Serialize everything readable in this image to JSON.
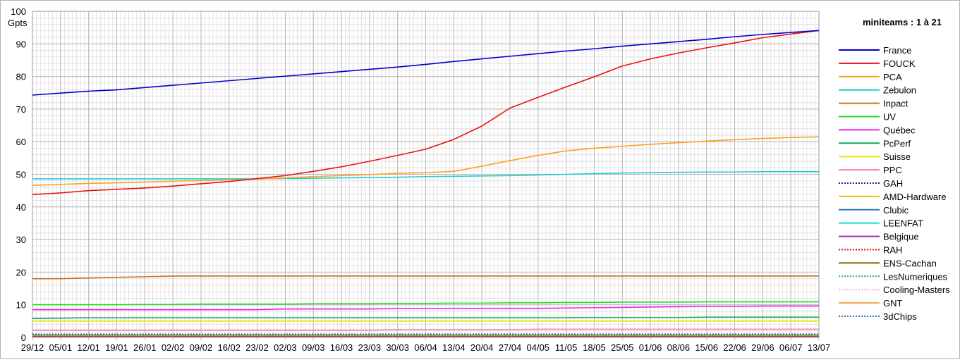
{
  "chart_data": {
    "type": "line",
    "title": "miniteams : 1 à 21",
    "xlabel": "",
    "ylabel": "Gpts",
    "ylim": [
      0,
      100
    ],
    "yticks": [
      0,
      10,
      20,
      30,
      40,
      50,
      60,
      70,
      80,
      90,
      100
    ],
    "x_tick_labels": [
      "29/12",
      "05/01",
      "12/01",
      "19/01",
      "26/01",
      "02/02",
      "09/02",
      "16/02",
      "23/02",
      "02/03",
      "09/03",
      "16/03",
      "23/03",
      "30/03",
      "06/04",
      "13/04",
      "20/04",
      "27/04",
      "04/05",
      "11/05",
      "18/05",
      "25/05",
      "01/06",
      "08/06",
      "15/06",
      "22/06",
      "29/06",
      "06/07",
      "13/07"
    ],
    "grid": true,
    "legend_position": "right",
    "series": [
      {
        "name": "France",
        "color": "#0000cc",
        "style": "solid",
        "values": [
          74.3,
          74.9,
          75.5,
          75.9,
          76.6,
          77.3,
          78.0,
          78.7,
          79.4,
          80.1,
          80.8,
          81.5,
          82.2,
          82.9,
          83.7,
          84.6,
          85.4,
          86.2,
          87.0,
          87.8,
          88.5,
          89.3,
          90.0,
          90.7,
          91.4,
          92.2,
          92.9,
          93.5,
          94.1
        ]
      },
      {
        "name": "FOUCK",
        "color": "#ee1111",
        "style": "solid",
        "values": [
          43.8,
          44.3,
          45.0,
          45.4,
          45.8,
          46.4,
          47.1,
          47.8,
          48.7,
          49.6,
          50.9,
          52.3,
          54.0,
          55.8,
          57.7,
          60.7,
          64.8,
          70.3,
          73.6,
          76.8,
          79.9,
          83.2,
          85.4,
          87.2,
          88.8,
          90.3,
          91.9,
          93.0,
          94.1
        ]
      },
      {
        "name": "PCA",
        "color": "#ffa020",
        "style": "solid",
        "values": [
          46.6,
          46.9,
          47.2,
          47.4,
          47.6,
          47.9,
          48.1,
          48.3,
          48.5,
          48.9,
          49.3,
          49.6,
          49.9,
          50.3,
          50.5,
          50.9,
          52.5,
          54.2,
          55.8,
          57.2,
          58.0,
          58.6,
          59.2,
          59.7,
          60.2,
          60.6,
          61.0,
          61.3,
          61.5
        ]
      },
      {
        "name": "Zebulon",
        "color": "#22cccc",
        "style": "solid",
        "values": [
          48.6,
          48.6,
          48.6,
          48.6,
          48.6,
          48.6,
          48.6,
          48.6,
          48.6,
          48.7,
          48.8,
          48.9,
          49.0,
          49.1,
          49.3,
          49.4,
          49.5,
          49.6,
          49.8,
          50.0,
          50.2,
          50.4,
          50.5,
          50.6,
          50.7,
          50.7,
          50.8,
          50.8,
          50.8
        ]
      },
      {
        "name": "Inpact",
        "color": "#c87028",
        "style": "solid",
        "values": [
          18.0,
          18.0,
          18.2,
          18.4,
          18.6,
          18.8,
          18.8,
          18.8,
          18.8,
          18.8,
          18.8,
          18.8,
          18.8,
          18.8,
          18.8,
          18.8,
          18.8,
          18.8,
          18.8,
          18.8,
          18.8,
          18.8,
          18.8,
          18.8,
          18.8,
          18.8,
          18.8,
          18.8,
          18.8
        ]
      },
      {
        "name": "UV",
        "color": "#22dd22",
        "style": "solid",
        "values": [
          10.0,
          10.0,
          10.0,
          10.0,
          10.1,
          10.1,
          10.2,
          10.2,
          10.2,
          10.2,
          10.3,
          10.3,
          10.3,
          10.4,
          10.4,
          10.5,
          10.5,
          10.6,
          10.6,
          10.7,
          10.7,
          10.8,
          10.8,
          10.8,
          10.9,
          10.9,
          10.9,
          10.9,
          10.9
        ]
      },
      {
        "name": "Québec",
        "color": "#ee22ee",
        "style": "solid",
        "values": [
          8.5,
          8.5,
          8.5,
          8.5,
          8.5,
          8.5,
          8.5,
          8.5,
          8.5,
          8.7,
          8.7,
          8.7,
          8.7,
          8.8,
          8.8,
          8.8,
          8.8,
          8.9,
          8.9,
          9.0,
          9.1,
          9.2,
          9.3,
          9.4,
          9.5,
          9.5,
          9.6,
          9.6,
          9.6
        ]
      },
      {
        "name": "PcPerf",
        "color": "#11aa55",
        "style": "solid",
        "values": [
          5.8,
          5.9,
          6.0,
          6.0,
          6.0,
          6.0,
          6.0,
          6.0,
          6.0,
          6.0,
          6.0,
          6.0,
          6.0,
          6.0,
          6.0,
          6.0,
          6.0,
          6.0,
          6.0,
          6.0,
          6.1,
          6.1,
          6.1,
          6.1,
          6.2,
          6.2,
          6.2,
          6.2,
          6.2
        ]
      },
      {
        "name": "Suisse",
        "color": "#e8e800",
        "style": "solid",
        "values": [
          5.0,
          5.0,
          5.0,
          5.0,
          5.0,
          5.0,
          5.0,
          5.0,
          5.0,
          5.0,
          5.0,
          5.0,
          5.0,
          5.0,
          5.0,
          5.0,
          5.0,
          5.0,
          5.0,
          5.0,
          5.0,
          5.0,
          5.0,
          5.0,
          5.0,
          5.0,
          5.0,
          5.0,
          5.0
        ]
      },
      {
        "name": "PPC",
        "color": "#ff77bb",
        "style": "solid",
        "values": [
          2.2,
          2.2,
          2.2,
          2.2,
          2.2,
          2.2,
          2.2,
          2.2,
          2.2,
          2.2,
          2.2,
          2.2,
          2.2,
          2.4,
          2.4,
          2.4,
          2.4,
          2.4,
          2.5,
          2.5,
          2.5,
          2.5,
          2.5,
          2.5,
          2.5,
          2.5,
          2.5,
          2.5,
          2.5
        ]
      },
      {
        "name": "GAH",
        "color": "#1a1aaa",
        "style": "dotted",
        "values": [
          1.0,
          1.0,
          1.0,
          1.0,
          1.0,
          1.0,
          1.0,
          1.0,
          1.0,
          1.0,
          1.0,
          1.0,
          1.0,
          1.0,
          1.0,
          1.0,
          1.0,
          1.0,
          1.0,
          1.0,
          1.0,
          1.0,
          1.0,
          1.0,
          1.0,
          1.0,
          1.0,
          1.0,
          1.0
        ]
      },
      {
        "name": "AMD-Hardware",
        "color": "#f0c000",
        "style": "solid",
        "values": [
          0.8,
          0.8,
          0.8,
          0.8,
          0.8,
          0.8,
          0.8,
          0.8,
          0.8,
          0.8,
          0.8,
          0.8,
          0.8,
          0.8,
          0.8,
          0.8,
          0.8,
          0.8,
          0.8,
          0.8,
          0.8,
          0.8,
          0.8,
          0.8,
          0.8,
          0.8,
          0.8,
          0.8,
          0.8
        ]
      },
      {
        "name": "Clubic",
        "color": "#3377bb",
        "style": "solid",
        "values": [
          0.7,
          0.7,
          0.7,
          0.7,
          0.7,
          0.7,
          0.7,
          0.7,
          0.7,
          0.7,
          0.7,
          0.7,
          0.7,
          0.7,
          0.7,
          0.7,
          0.7,
          0.7,
          0.7,
          0.7,
          0.7,
          0.7,
          0.7,
          0.7,
          0.7,
          0.7,
          0.7,
          0.7,
          0.7
        ]
      },
      {
        "name": "LEENFAT",
        "color": "#22dddd",
        "style": "solid",
        "values": [
          0.6,
          0.6,
          0.6,
          0.6,
          0.6,
          0.6,
          0.6,
          0.6,
          0.6,
          0.6,
          0.6,
          0.6,
          0.6,
          0.6,
          0.6,
          0.6,
          0.6,
          0.6,
          0.6,
          0.6,
          0.6,
          0.6,
          0.6,
          0.6,
          0.6,
          0.6,
          0.6,
          0.6,
          0.6
        ]
      },
      {
        "name": "Belgique",
        "color": "#9922cc",
        "style": "solid",
        "values": [
          0.5,
          0.5,
          0.5,
          0.5,
          0.5,
          0.5,
          0.5,
          0.5,
          0.5,
          0.5,
          0.5,
          0.5,
          0.5,
          0.5,
          0.5,
          0.5,
          0.5,
          0.5,
          0.5,
          0.5,
          0.5,
          0.5,
          0.5,
          0.5,
          0.5,
          0.5,
          0.5,
          0.5,
          0.5
        ]
      },
      {
        "name": "RAH",
        "color": "#dd1111",
        "style": "dotted",
        "values": [
          0.4,
          0.4,
          0.4,
          0.4,
          0.4,
          0.4,
          0.4,
          0.4,
          0.4,
          0.4,
          0.4,
          0.4,
          0.4,
          0.4,
          0.4,
          0.4,
          0.4,
          0.4,
          0.4,
          0.4,
          0.4,
          0.4,
          0.4,
          0.4,
          0.4,
          0.4,
          0.4,
          0.4,
          0.4
        ]
      },
      {
        "name": "ENS-Cachan",
        "color": "#7a6a00",
        "style": "solid",
        "values": [
          0.3,
          0.3,
          0.3,
          0.3,
          0.3,
          0.3,
          0.3,
          0.3,
          0.3,
          0.3,
          0.3,
          0.3,
          0.3,
          0.3,
          0.3,
          0.3,
          0.3,
          0.3,
          0.3,
          0.3,
          0.3,
          0.3,
          0.3,
          0.3,
          0.3,
          0.3,
          0.3,
          0.3,
          0.3
        ]
      },
      {
        "name": "LesNumeriques",
        "color": "#33aa66",
        "style": "dotted",
        "values": [
          0.25,
          0.25,
          0.25,
          0.25,
          0.25,
          0.25,
          0.25,
          0.25,
          0.25,
          0.25,
          0.25,
          0.25,
          0.25,
          0.25,
          0.25,
          0.25,
          0.25,
          0.25,
          0.25,
          0.25,
          0.25,
          0.25,
          0.25,
          0.25,
          0.25,
          0.25,
          0.25,
          0.25,
          0.25
        ]
      },
      {
        "name": "Cooling-Masters",
        "color": "#ffaacc",
        "style": "dotted",
        "values": [
          0.2,
          0.2,
          0.2,
          0.2,
          0.2,
          0.2,
          0.2,
          0.2,
          0.2,
          0.2,
          0.2,
          0.2,
          0.2,
          0.2,
          0.2,
          0.2,
          0.2,
          0.2,
          0.2,
          0.2,
          0.2,
          0.2,
          0.2,
          0.2,
          0.2,
          0.2,
          0.2,
          0.2,
          0.2
        ]
      },
      {
        "name": "GNT",
        "color": "#f0a050",
        "style": "solid",
        "values": [
          0.15,
          0.15,
          0.15,
          0.15,
          0.15,
          0.15,
          0.15,
          0.15,
          0.15,
          0.15,
          0.15,
          0.15,
          0.15,
          0.15,
          0.15,
          0.15,
          0.15,
          0.15,
          0.15,
          0.15,
          0.15,
          0.15,
          0.15,
          0.15,
          0.15,
          0.15,
          0.15,
          0.15,
          0.15
        ]
      },
      {
        "name": "3dChips",
        "color": "#4477aa",
        "style": "dotted",
        "values": [
          0.1,
          0.1,
          0.1,
          0.1,
          0.1,
          0.1,
          0.1,
          0.1,
          0.1,
          0.1,
          0.1,
          0.1,
          0.1,
          0.1,
          0.1,
          0.1,
          0.1,
          0.1,
          0.1,
          0.1,
          0.1,
          0.1,
          0.1,
          0.1,
          0.1,
          0.1,
          0.1,
          0.1,
          0.1
        ]
      }
    ]
  }
}
